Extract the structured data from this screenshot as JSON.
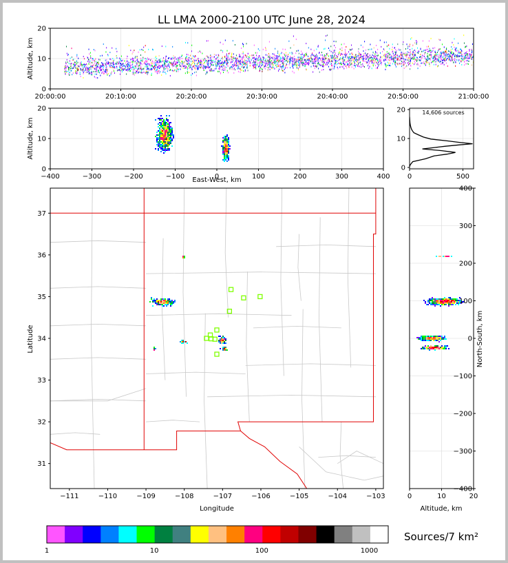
{
  "chart_data": {
    "type": "multi-panel-lightning-density",
    "title": "LL LMA 2000-2100 UTC June 28, 2024",
    "source_count_label": "14,606 sources",
    "colors": {
      "background": "#ffffff",
      "grid": "#d8d8d8",
      "map_lines": "#c8c8c8",
      "border_red": "#e00000",
      "marker_green": "#7fff00",
      "outer_frame": "#c0c0c0"
    },
    "time_height": {
      "ylabel": "Altitude, km",
      "xlim": [
        "20:00:00",
        "21:00:00"
      ],
      "ylim": [
        0,
        20
      ],
      "x_ticks": [
        "20:00:00",
        "20:10:00",
        "20:20:00",
        "20:30:00",
        "20:40:00",
        "20:50:00",
        "21:00:00"
      ],
      "y_ticks": [
        0,
        10,
        20
      ]
    },
    "ew_altitude": {
      "xlabel": "East-West, km",
      "ylabel": "Altitude, km",
      "xlim": [
        -400,
        400
      ],
      "ylim": [
        0,
        20
      ],
      "x_ticks": [
        -400,
        -300,
        -200,
        -100,
        0,
        100,
        200,
        300,
        400
      ],
      "y_ticks": [
        0,
        10,
        20
      ],
      "clusters": [
        {
          "x": -125,
          "z": 11,
          "sx": 14,
          "sz": 4,
          "n": 850
        },
        {
          "x": 22,
          "z": 7,
          "sx": 6,
          "sz": 3,
          "n": 450
        }
      ]
    },
    "altitude_histogram": {
      "xlim": [
        0,
        600
      ],
      "ylim": [
        0,
        20
      ],
      "x_ticks": [
        0,
        500
      ],
      "y_ticks": [
        0,
        10,
        20
      ],
      "profile": [
        [
          0,
          0.3
        ],
        [
          8,
          1
        ],
        [
          30,
          2
        ],
        [
          150,
          3
        ],
        [
          230,
          4
        ],
        [
          350,
          4.6
        ],
        [
          430,
          5.2
        ],
        [
          300,
          5.8
        ],
        [
          120,
          6.4
        ],
        [
          240,
          6.9
        ],
        [
          330,
          7.3
        ],
        [
          470,
          7.8
        ],
        [
          590,
          8.2
        ],
        [
          460,
          8.7
        ],
        [
          350,
          9.2
        ],
        [
          200,
          9.8
        ],
        [
          130,
          10.5
        ],
        [
          80,
          11.3
        ],
        [
          40,
          12
        ],
        [
          24,
          12.8
        ],
        [
          14,
          13.6
        ],
        [
          8,
          14.5
        ],
        [
          4,
          15.4
        ],
        [
          2,
          16.4
        ],
        [
          0,
          17.5
        ]
      ]
    },
    "plan_view": {
      "xlabel": "Longitude",
      "ylabel": "Latitude",
      "xlim": [
        -111.5,
        -102.8
      ],
      "ylim": [
        30.4,
        37.6
      ],
      "x_ticks": [
        -111,
        -110,
        -109,
        -108,
        -107,
        -106,
        -105,
        -104,
        -103
      ],
      "y_ticks": [
        31,
        32,
        33,
        34,
        35,
        36,
        37
      ],
      "clusters": [
        {
          "lon": -108.55,
          "lat": 34.87,
          "slon": 0.22,
          "slat": 0.06,
          "n": 280
        },
        {
          "lon": -107.0,
          "lat": 33.95,
          "slon": 0.07,
          "slat": 0.07,
          "n": 90
        },
        {
          "lon": -106.95,
          "lat": 33.75,
          "slon": 0.06,
          "slat": 0.04,
          "n": 60
        },
        {
          "lon": -108.78,
          "lat": 33.72,
          "slon": 0.02,
          "slat": 0.05,
          "n": 12
        },
        {
          "lon": -108.02,
          "lat": 33.92,
          "slon": 0.07,
          "slat": 0.03,
          "n": 18
        },
        {
          "lon": -108.03,
          "lat": 35.95,
          "slon": 0.03,
          "slat": 0.01,
          "n": 6
        }
      ],
      "station_markers": [
        [
          -106.78,
          35.17
        ],
        [
          -106.45,
          34.97
        ],
        [
          -106.02,
          35.0
        ],
        [
          -106.82,
          34.65
        ],
        [
          -107.15,
          34.2
        ],
        [
          -107.32,
          34.08
        ],
        [
          -107.2,
          33.98
        ],
        [
          -107.42,
          34.0
        ],
        [
          -107.3,
          33.99
        ],
        [
          -107.15,
          33.62
        ]
      ]
    },
    "ns_altitude": {
      "xlabel": "Altitude, km",
      "ylabel": "North-South, km",
      "xlim": [
        0,
        20
      ],
      "ylim": [
        -400,
        400
      ],
      "x_ticks": [
        0,
        10,
        20
      ],
      "y_ticks": [
        -400,
        -300,
        -200,
        -100,
        0,
        100,
        200,
        300,
        400
      ],
      "clusters": [
        {
          "z": 11,
          "y": 98,
          "sz": 4,
          "sy": 7,
          "n": 700
        },
        {
          "z": 7,
          "y": 0,
          "sz": 3,
          "sy": 5,
          "n": 350
        },
        {
          "z": 8,
          "y": -25,
          "sz": 3,
          "sy": 4,
          "n": 250
        },
        {
          "z": 11,
          "y": 218,
          "sz": 2,
          "sy": 1.5,
          "n": 18
        }
      ]
    },
    "colorbar": {
      "label": "Sources/7 km²",
      "ticks": [
        "1",
        "10",
        "100",
        "1000"
      ],
      "colors": [
        "#ff55ff",
        "#8000ff",
        "#0000ff",
        "#0080ff",
        "#00ffff",
        "#00ff00",
        "#008040",
        "#408080",
        "#ffff00",
        "#ffc080",
        "#ff8000",
        "#ff0080",
        "#ff0000",
        "#c00000",
        "#800000",
        "#000000",
        "#808080",
        "#c0c0c0",
        "#ffffff"
      ]
    }
  }
}
